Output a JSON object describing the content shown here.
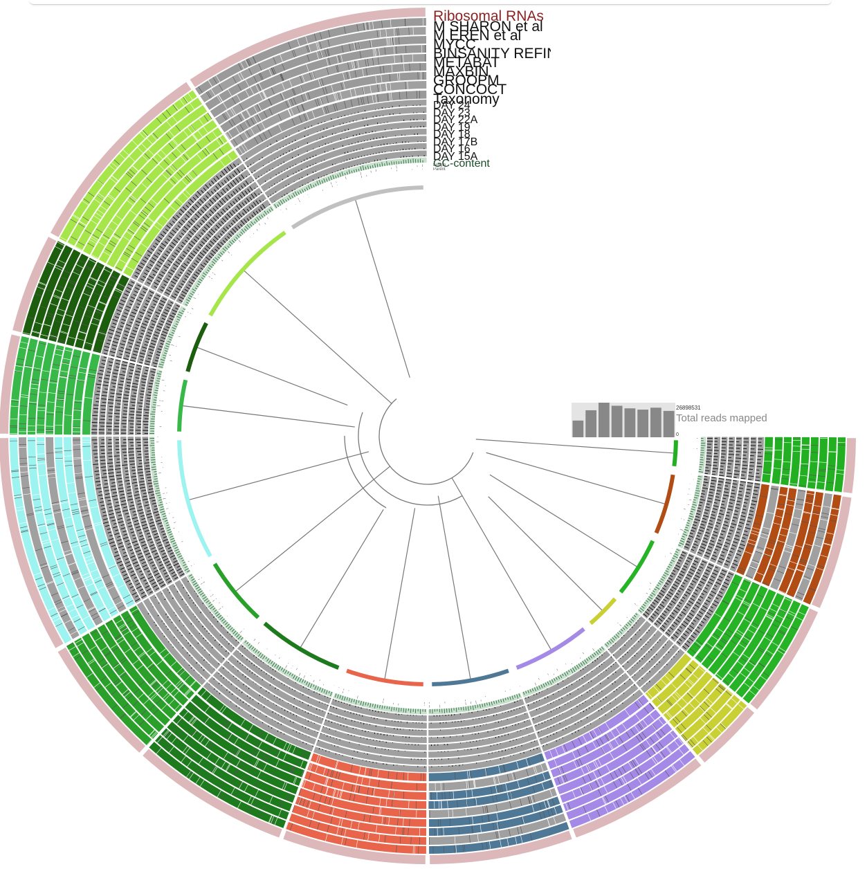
{
  "chart_data": {
    "type": "circular-phylogram",
    "origin_angle_deg": 270,
    "layers": [
      {
        "key": "ribosomal",
        "label": "Ribosomal RNAs",
        "label_color": "#8b2323",
        "style": "band",
        "color": "#dcb8ba"
      },
      {
        "key": "sharon",
        "label": "M SHARON et al",
        "label_color": "#111111",
        "style": "bins"
      },
      {
        "key": "eren",
        "label": "M EREN et al",
        "label_color": "#111111",
        "style": "bins"
      },
      {
        "key": "mycc",
        "label": "MYCC",
        "label_color": "#111111",
        "style": "bins"
      },
      {
        "key": "binsanity",
        "label": "BINSANITY REFINE",
        "label_color": "#111111",
        "style": "bins"
      },
      {
        "key": "metabat",
        "label": "METABAT",
        "label_color": "#111111",
        "style": "bins"
      },
      {
        "key": "maxbin",
        "label": "MAXBIN",
        "label_color": "#111111",
        "style": "bins"
      },
      {
        "key": "groopm",
        "label": "GROOPM",
        "label_color": "#111111",
        "style": "bins"
      },
      {
        "key": "concoct",
        "label": "CONCOCT",
        "label_color": "#111111",
        "style": "bins"
      },
      {
        "key": "taxonomy",
        "label": "Taxonomy",
        "label_color": "#111111",
        "style": "bins"
      },
      {
        "key": "day24",
        "label": "DAY 24",
        "label_color": "#111111",
        "style": "coverage"
      },
      {
        "key": "day23",
        "label": "DAY 23",
        "label_color": "#111111",
        "style": "coverage"
      },
      {
        "key": "day22a",
        "label": "DAY 22A",
        "label_color": "#111111",
        "style": "coverage"
      },
      {
        "key": "day19",
        "label": "DAY 19",
        "label_color": "#111111",
        "style": "coverage"
      },
      {
        "key": "day18",
        "label": "DAY 18",
        "label_color": "#111111",
        "style": "coverage"
      },
      {
        "key": "day17b",
        "label": "DAY 17B",
        "label_color": "#111111",
        "style": "coverage"
      },
      {
        "key": "day16",
        "label": "DAY 16",
        "label_color": "#111111",
        "style": "coverage"
      },
      {
        "key": "day15a",
        "label": "DAY 15A",
        "label_color": "#111111",
        "style": "coverage"
      },
      {
        "key": "gc",
        "label": "GC-content",
        "label_color": "#1a4d2a",
        "style": "gc"
      },
      {
        "key": "length",
        "label": "Length",
        "label_color": "#555555",
        "style": "length"
      },
      {
        "key": "parent",
        "label": "Parent",
        "label_color": "#555555",
        "style": "parent"
      }
    ],
    "clades": [
      {
        "name": "c1",
        "start": 270,
        "end": 292,
        "color": "#2a6f8f"
      },
      {
        "name": "c2",
        "start": 292,
        "end": 330,
        "color": "#9a9a9a"
      },
      {
        "name": "c3",
        "start": 330,
        "end": 348,
        "color": "#c8c8c8"
      },
      {
        "name": "c4",
        "start": 348,
        "end": 358,
        "color": "#9a9a9a"
      },
      {
        "name": "c5",
        "start": 358,
        "end": 360,
        "color": "#e8141e"
      },
      {
        "name": "c6",
        "start": 0,
        "end": 8,
        "color": "#22b022"
      },
      {
        "name": "c7",
        "start": 8,
        "end": 24,
        "color": "#b04c14"
      },
      {
        "name": "c8",
        "start": 24,
        "end": 40,
        "color": "#26b326"
      },
      {
        "name": "c9",
        "start": 40,
        "end": 50,
        "color": "#c8d034"
      },
      {
        "name": "c10",
        "start": 50,
        "end": 70,
        "color": "#a48ae6"
      },
      {
        "name": "c11",
        "start": 70,
        "end": 90,
        "color": "#4f7896"
      },
      {
        "name": "c12",
        "start": 90,
        "end": 110,
        "color": "#e8654b"
      },
      {
        "name": "c13",
        "start": 110,
        "end": 132,
        "color": "#1d7a1d"
      },
      {
        "name": "c14",
        "start": 132,
        "end": 150,
        "color": "#2aa02a"
      },
      {
        "name": "c15",
        "start": 150,
        "end": 180,
        "color": "#9df3ef"
      },
      {
        "name": "c16",
        "start": 180,
        "end": 194,
        "color": "#39b84a"
      },
      {
        "name": "c17",
        "start": 194,
        "end": 208,
        "color": "#1d5e0e"
      },
      {
        "name": "c18",
        "start": 208,
        "end": 236,
        "color": "#a6e64a"
      },
      {
        "name": "c19",
        "start": 236,
        "end": 270,
        "color": "#9a9a9a"
      }
    ],
    "total_reads": {
      "label": "Total reads mapped",
      "max": "26898531",
      "min": "0",
      "values": [
        13000000,
        21000000,
        26898531,
        24500000,
        22500000,
        21500000,
        23000000,
        20500000
      ]
    }
  },
  "colors": {
    "ring_gray": "#a0a0a0",
    "ring_bg": "#e6e6e6",
    "coverage_fill": "#000000",
    "gc_fill": "#1b5e33"
  }
}
